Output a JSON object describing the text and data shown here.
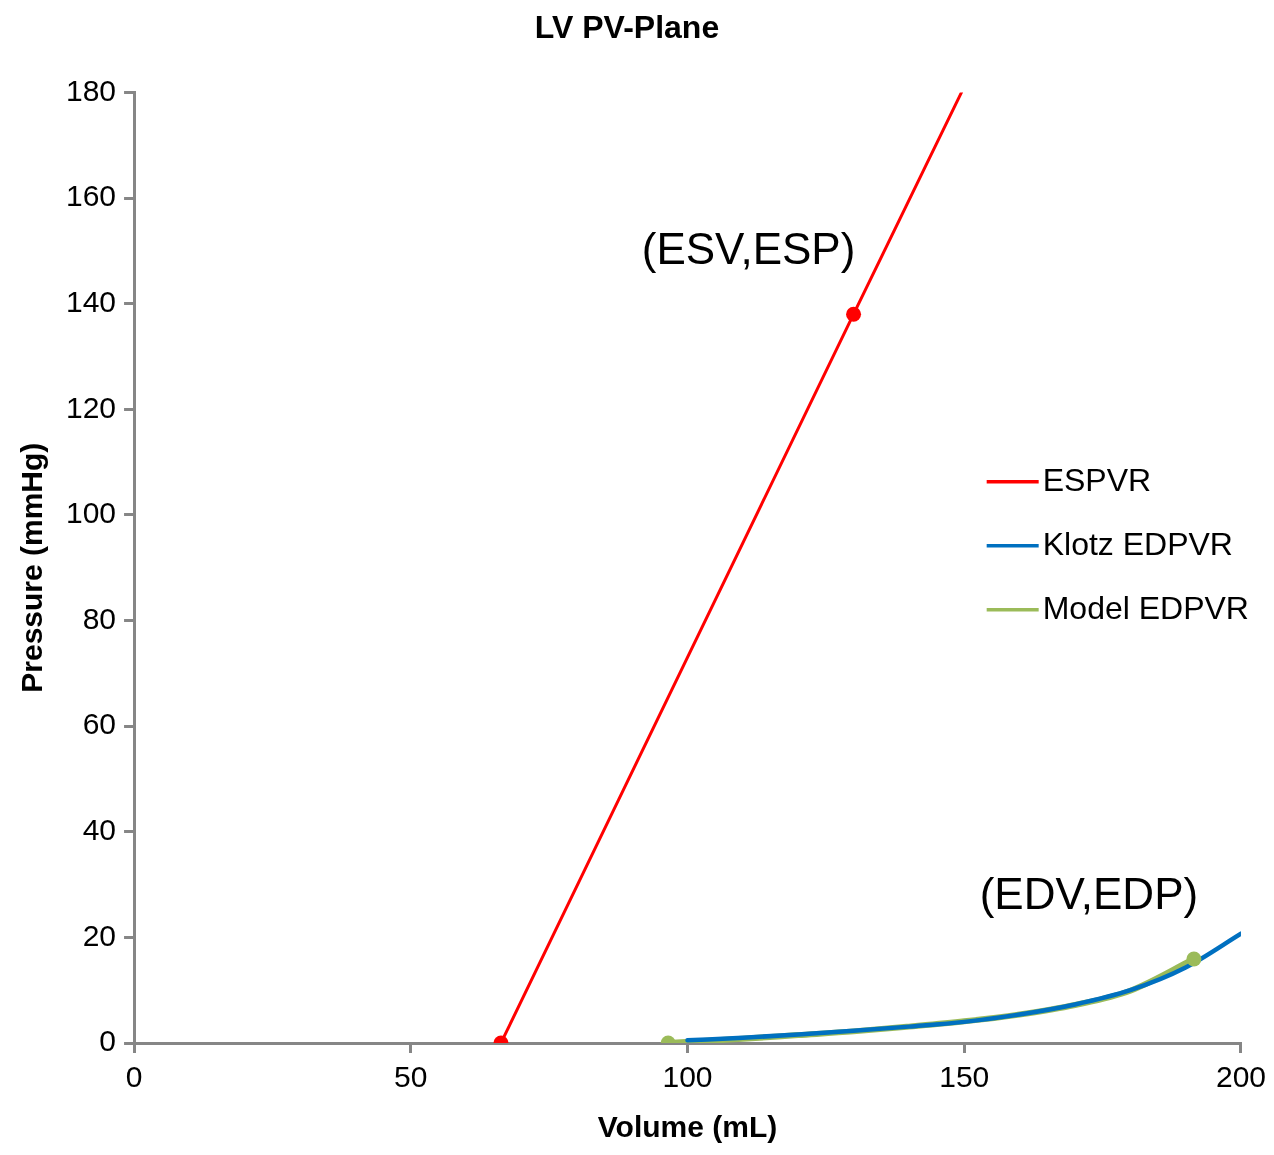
{
  "chart_data": {
    "type": "line",
    "title": "LV PV-Plane",
    "xlabel": "Volume (mL)",
    "ylabel": "Pressure (mmHg)",
    "xlim": [
      0,
      200
    ],
    "xticks": [
      0,
      50,
      100,
      150,
      200
    ],
    "ylim": [
      0,
      180
    ],
    "yticks": [
      0,
      20,
      40,
      60,
      80,
      100,
      120,
      140,
      160,
      180
    ],
    "grid": false,
    "legend": "right",
    "marker": "none",
    "line_style": "solid",
    "series": [
      {
        "name": "ESPVR",
        "color": "#ff0000",
        "x": [
          66.3,
          130,
          149.5
        ],
        "values": [
          0,
          138,
          180
        ]
      },
      {
        "name": "Klotz EDPVR",
        "color": "#0070c0",
        "x": [
          100,
          110,
          120,
          130,
          140,
          150,
          160,
          170,
          180,
          190,
          200
        ],
        "values": [
          0.5,
          1,
          1.6,
          2.3,
          3.1,
          4,
          5.4,
          7.3,
          10,
          14.3,
          20.7
        ]
      },
      {
        "name": "Model EDPVR",
        "color": "#9bbb59",
        "x": [
          96.5,
          110,
          120,
          130,
          140,
          150,
          160,
          170,
          180,
          191.5
        ],
        "values": [
          0,
          0.8,
          1.5,
          2.2,
          3.1,
          4.1,
          5.4,
          7.2,
          9.9,
          15.9
        ]
      },
      {
        "type": "scatter",
        "marker": "circle",
        "color": "#ff0000",
        "x": [
          66.3,
          130
        ],
        "values": [
          0,
          138
        ]
      },
      {
        "type": "scatter",
        "marker": "circle",
        "color": "#9bbb59",
        "x": [
          96.5,
          191.5
        ],
        "values": [
          0,
          15.9
        ]
      }
    ],
    "annotations": [
      {
        "text": "(ESV,ESP)",
        "x": 130,
        "y": 138
      },
      {
        "text": "(EDV,EDP)",
        "x": 191.5,
        "y": 15.9
      }
    ]
  }
}
